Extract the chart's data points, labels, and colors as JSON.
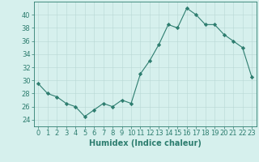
{
  "x": [
    0,
    1,
    2,
    3,
    4,
    5,
    6,
    7,
    8,
    9,
    10,
    11,
    12,
    13,
    14,
    15,
    16,
    17,
    18,
    19,
    20,
    21,
    22,
    23
  ],
  "y": [
    29.5,
    28.0,
    27.5,
    26.5,
    26.0,
    24.5,
    25.5,
    26.5,
    26.0,
    27.0,
    26.5,
    31.0,
    33.0,
    35.5,
    38.5,
    38.0,
    41.0,
    40.0,
    38.5,
    38.5,
    37.0,
    36.0,
    35.0,
    30.5
  ],
  "line_color": "#2d7d6f",
  "marker": "D",
  "marker_size": 2.2,
  "bg_color": "#d6f0ed",
  "grid_color": "#b8d8d4",
  "axis_color": "#2d7d6f",
  "xlabel": "Humidex (Indice chaleur)",
  "ylim": [
    23,
    42
  ],
  "xlim": [
    -0.5,
    23.5
  ],
  "yticks": [
    24,
    26,
    28,
    30,
    32,
    34,
    36,
    38,
    40
  ],
  "xticks": [
    0,
    1,
    2,
    3,
    4,
    5,
    6,
    7,
    8,
    9,
    10,
    11,
    12,
    13,
    14,
    15,
    16,
    17,
    18,
    19,
    20,
    21,
    22,
    23
  ],
  "font_color": "#2d7d6f",
  "fontsize_label": 7,
  "fontsize_tick": 6
}
